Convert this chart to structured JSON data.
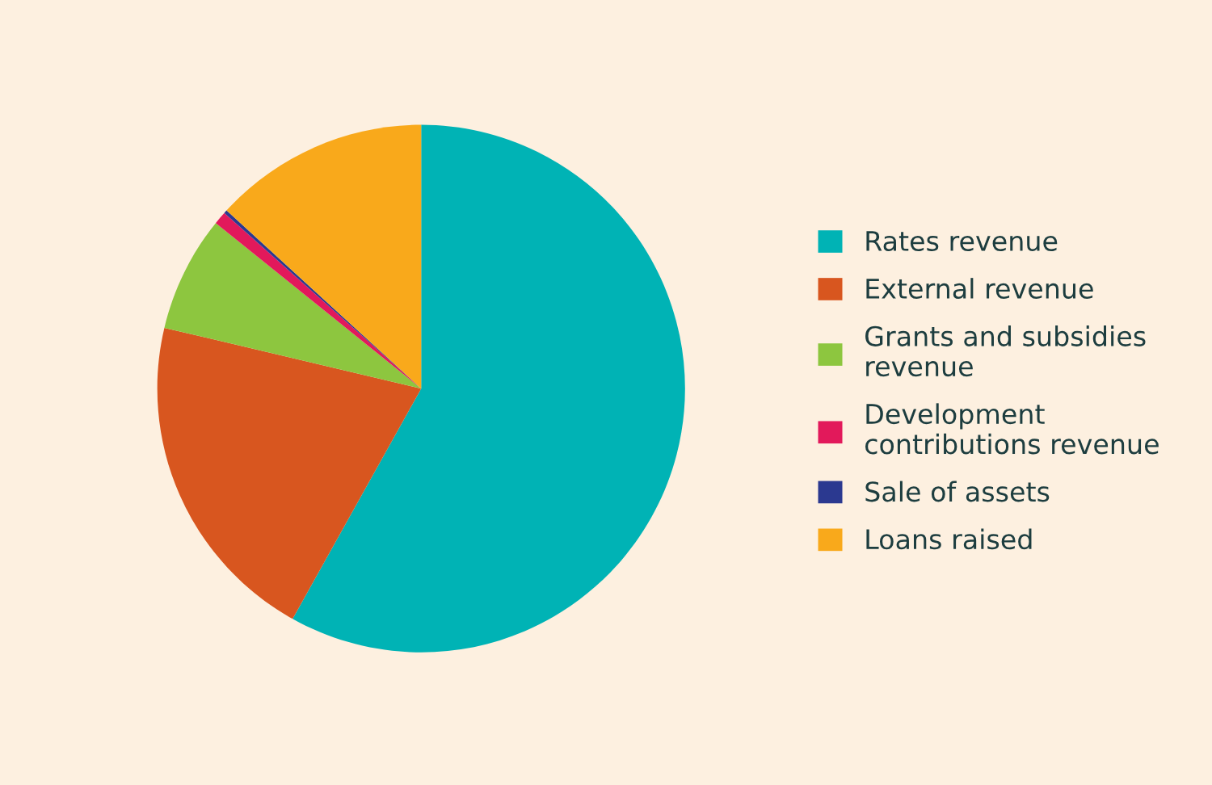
{
  "chart_data": {
    "type": "pie",
    "categories": [
      "Rates revenue",
      "External revenue",
      "Grants and subsidies\nrevenue",
      "Development\ncontributions revenue",
      "Sale of assets",
      "Loans raised"
    ],
    "values": [
      58.1,
      20.6,
      7.1,
      0.8,
      0.2,
      13.2
    ],
    "colors": [
      "#00b3b5",
      "#d8561f",
      "#8dc63f",
      "#e2195b",
      "#2b3990",
      "#f9a91b"
    ],
    "legend": "right"
  }
}
